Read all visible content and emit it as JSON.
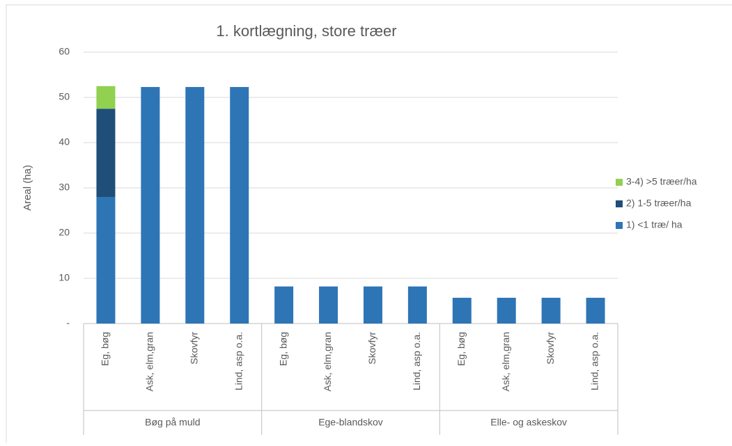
{
  "chart_data": {
    "type": "stacked_bar",
    "title": "1. kortlægning, store træer",
    "ylabel": "Areal (ha)",
    "categories": [
      "Eg, bøg",
      "Ask, elm,gran",
      "Skovfyr",
      "Lind, asp o.a.",
      "Eg, bøg",
      "Ask, elm,gran",
      "Skovfyr",
      "Lind, asp o.a.",
      "Eg, bøg",
      "Ask, elm,gran",
      "Skovfyr",
      "Lind, asp o.a."
    ],
    "groups": [
      "Bøg på muld",
      "Ege-blandskov",
      "Elle- og askeskov"
    ],
    "series": [
      {
        "name": "1) <1 træ/ ha",
        "color": "#2e75b6",
        "values": [
          28,
          52.3,
          52.3,
          52.3,
          8.2,
          8.2,
          8.2,
          8.2,
          5.7,
          5.7,
          5.7,
          5.7
        ]
      },
      {
        "name": "2) 1-5 træer/ha",
        "color": "#1f4e79",
        "values": [
          19.5,
          0,
          0,
          0,
          0,
          0,
          0,
          0,
          0,
          0,
          0,
          0
        ]
      },
      {
        "name": "3-4) >5 træer/ha",
        "color": "#92d050",
        "values": [
          5,
          0,
          0,
          0,
          0,
          0,
          0,
          0,
          0,
          0,
          0,
          0
        ]
      }
    ],
    "ylim": [
      0,
      60
    ],
    "yticks": [
      {
        "value": 0,
        "label": "-"
      },
      10,
      20,
      30,
      40,
      50,
      60
    ],
    "grid": true,
    "legend": "right"
  }
}
